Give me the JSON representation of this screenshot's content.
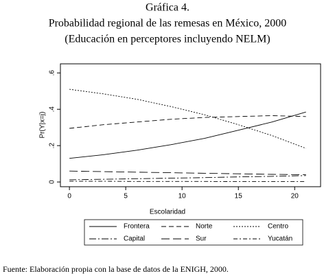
{
  "chart_data": {
    "type": "line",
    "title": "Gráfica 4.",
    "subtitle": [
      "Probabilidad regional de las remesas en México, 2000",
      "(Educación en perceptores incluyendo NELM)"
    ],
    "x_label": "Escolaridad",
    "y_label": "Pr(Y|x=j)",
    "source": "Fuente: Elaboración propia con la base de datos de la ENIGH, 2000.",
    "x": [
      0,
      3,
      6,
      9,
      12,
      15,
      18,
      21
    ],
    "xlim": [
      -0.8,
      22.3
    ],
    "xticks": [
      0,
      5,
      10,
      15,
      20
    ],
    "ylim": [
      -0.026,
      0.65
    ],
    "yticks": [
      0,
      {
        "value": 0.2,
        "label": ".2"
      },
      {
        "value": 0.4,
        "label": ".4"
      },
      {
        "value": 0.6,
        "label": ".6"
      }
    ],
    "grid": false,
    "series": [
      {
        "name": "Frontera",
        "color": "#000000",
        "dash": "none",
        "values": [
          0.13,
          0.15,
          0.175,
          0.205,
          0.24,
          0.285,
          0.33,
          0.385
        ]
      },
      {
        "name": "Norte",
        "color": "#000000",
        "dash": "7 4",
        "values": [
          0.295,
          0.315,
          0.33,
          0.345,
          0.355,
          0.36,
          0.365,
          0.36
        ]
      },
      {
        "name": "Centro",
        "color": "#000000",
        "dash": "2 2",
        "values": [
          0.51,
          0.485,
          0.455,
          0.415,
          0.37,
          0.315,
          0.255,
          0.185
        ]
      },
      {
        "name": "Capital",
        "color": "#000000",
        "dash": "10 3 2 3",
        "values": [
          0.012,
          0.015,
          0.018,
          0.021,
          0.024,
          0.028,
          0.031,
          0.035
        ]
      },
      {
        "name": "Sur",
        "color": "#000000",
        "dash": "12 5",
        "values": [
          0.06,
          0.057,
          0.054,
          0.051,
          0.048,
          0.045,
          0.042,
          0.04
        ]
      },
      {
        "name": "Yucatán",
        "color": "#000000",
        "dash": "6 3 2 3",
        "values": [
          0.004,
          0.004,
          0.003,
          0.003,
          0.003,
          0.002,
          0.002,
          0.002
        ]
      }
    ]
  }
}
